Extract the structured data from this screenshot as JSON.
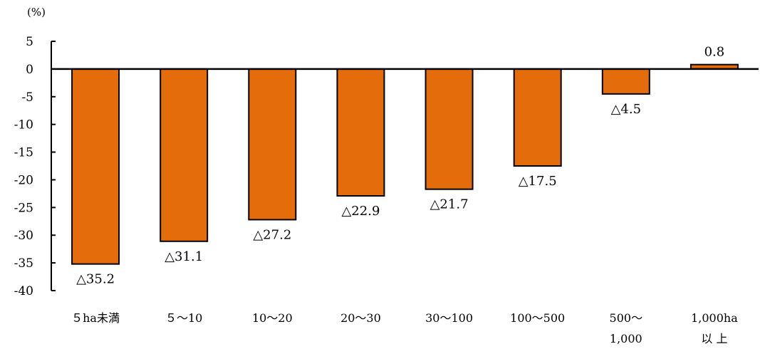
{
  "chart_data": {
    "type": "bar",
    "title": "",
    "xlabel": "",
    "ylabel": "",
    "unit_label": "(%)",
    "ylim": [
      -40,
      5
    ],
    "yticks": [
      5,
      0,
      -5,
      -10,
      -15,
      -20,
      -25,
      -30,
      -35,
      -40
    ],
    "grid": false,
    "legend": "none",
    "bar_color": "#E46C0A",
    "categories": [
      [
        "５ha未満"
      ],
      [
        "５～10"
      ],
      [
        "10～20"
      ],
      [
        "20～30"
      ],
      [
        "30～100"
      ],
      [
        "100～500"
      ],
      [
        "500～",
        "1,000"
      ],
      [
        "1,000ha",
        "以 上"
      ]
    ],
    "values": [
      -35.2,
      -31.1,
      -27.2,
      -22.9,
      -21.7,
      -17.5,
      -4.5,
      0.8
    ],
    "data_labels": [
      "△35.2",
      "△31.1",
      "△27.2",
      "△22.9",
      "△21.7",
      "△17.5",
      "△4.5",
      "0.8"
    ]
  }
}
